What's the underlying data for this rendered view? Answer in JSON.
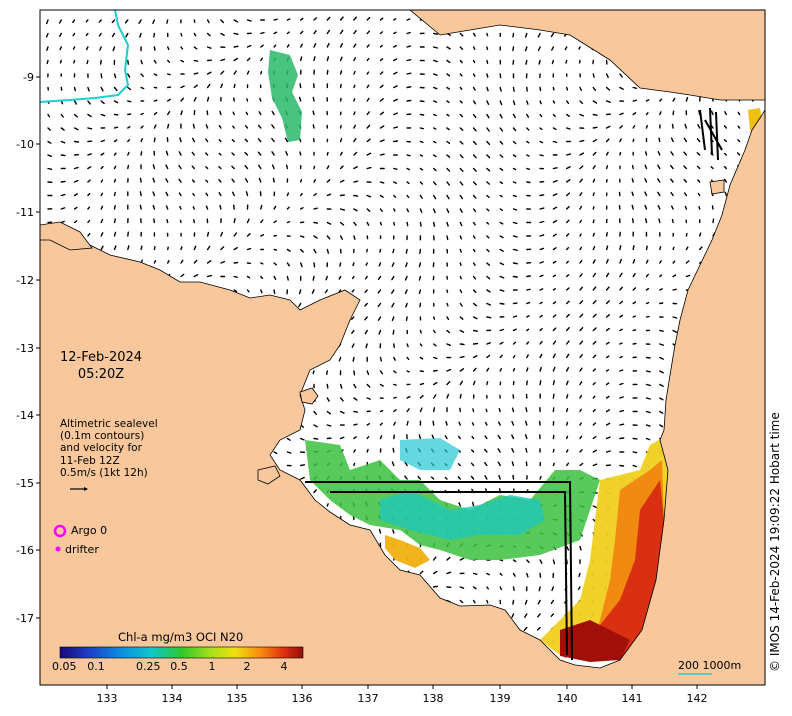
{
  "map": {
    "date": "12-Feb-2024",
    "time": "05:20Z",
    "legend_text": [
      "Altimetric sealevel",
      "(0.1m contours)",
      "and velocity for",
      "11-Feb 12Z",
      "0.5m/s (1kt 12h)"
    ],
    "argo_label": "Argo 0",
    "drifter_label": "drifter",
    "colorbar": {
      "title": "Chl-a mg/m3 OCI N20",
      "ticks": [
        "0.05",
        "0.1",
        "0.25",
        "0.5",
        "1",
        "2",
        "4"
      ]
    },
    "scale_label": "200  1000m",
    "credit": "© IMOS 14-Feb-2024 19:09:22 Hobart time",
    "x_ticks": [
      "133",
      "134",
      "135",
      "136",
      "137",
      "138",
      "139",
      "140",
      "141",
      "142"
    ],
    "y_ticks": [
      "-9",
      "-10",
      "-11",
      "-12",
      "-13",
      "-14",
      "-15",
      "-16",
      "-17"
    ],
    "colors": {
      "land": "#f8c89c",
      "ocean": "#ffffff",
      "contour_cyan": "#1ecfcf",
      "argo_marker": "#ff00ff",
      "drifter_marker": "#ff00ff"
    }
  }
}
